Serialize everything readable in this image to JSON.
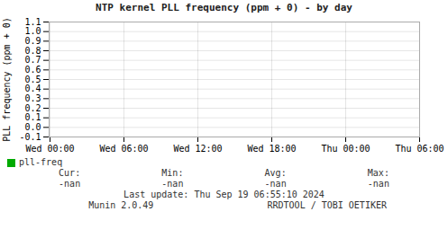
{
  "chart_data": {
    "type": "line",
    "title": "NTP kernel PLL frequency (ppm + 0) - by day",
    "y_label": "PLL frequency (ppm + 0)",
    "categories": [
      "Wed 00:00",
      "Wed 06:00",
      "Wed 12:00",
      "Wed 18:00",
      "Thu 00:00",
      "Thu 06:00"
    ],
    "series": [
      {
        "name": "pll-freq",
        "color": "#00aa00",
        "values": [
          null,
          null,
          null,
          null,
          null,
          null
        ]
      }
    ],
    "ylim": [
      -0.1,
      1.1
    ],
    "yticks": [
      -0.1,
      {
        "value": 0.0,
        "label": "0.0"
      },
      0.1,
      0.2,
      0.3,
      0.4,
      0.5,
      0.6,
      0.7,
      0.8,
      0.9,
      {
        "value": 1.0,
        "label": "1.0"
      },
      1.1
    ],
    "grid": true,
    "legend": "bottom left",
    "annotations": [
      [
        "Cur:",
        "Min:",
        "Avg:",
        "Max:"
      ],
      [
        "-nan",
        "-nan",
        "-nan",
        "-nan"
      ],
      [
        "Last update: Thu Sep 19 06:55:10 2024"
      ],
      [
        "Munin 2.0.49",
        "RRDTOOL / TOBI OETIKER"
      ]
    ]
  }
}
